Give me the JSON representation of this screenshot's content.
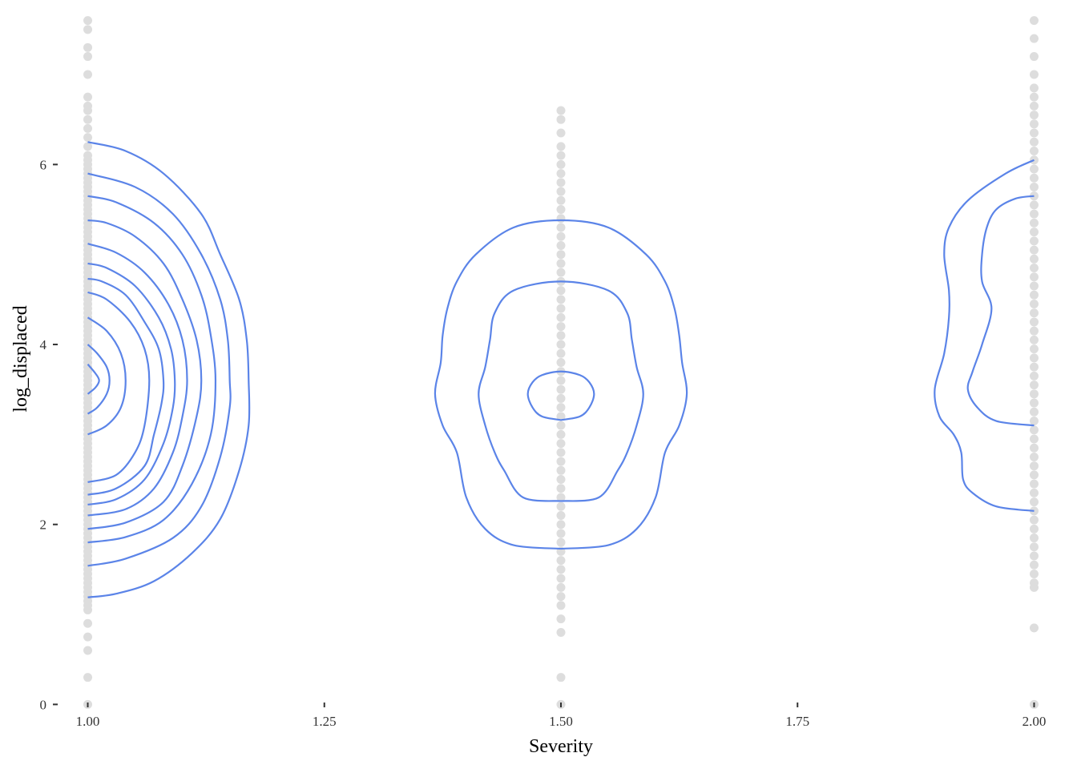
{
  "chart_data": {
    "type": "scatter",
    "title": "",
    "xlabel": "Severity",
    "ylabel": "log_displaced",
    "xlim": [
      0.975,
      2.025
    ],
    "ylim": [
      -0.05,
      7.65
    ],
    "xticks": [
      1.0,
      1.25,
      1.5,
      1.75,
      2.0
    ],
    "xtick_labels": [
      "1.00",
      "1.25",
      "1.50",
      "1.75",
      "2.00"
    ],
    "yticks": [
      0,
      2,
      4,
      6
    ],
    "ytick_labels": [
      "0",
      "2",
      "4",
      "6"
    ],
    "grid": false,
    "legend": "none",
    "colors": {
      "points": "#dddddd",
      "contours": "#5b84e8",
      "ticks": "#333333"
    },
    "points": [
      {
        "x": 1.0,
        "y": [
          0.0,
          0.3,
          0.6,
          0.75,
          0.9,
          1.05,
          1.1,
          1.15,
          1.2,
          1.25,
          1.3,
          1.35,
          1.4,
          1.45,
          1.5,
          1.55,
          1.6,
          1.65,
          1.7,
          1.75,
          1.8,
          1.85,
          1.9,
          1.95,
          2.0,
          2.05,
          2.1,
          2.15,
          2.2,
          2.25,
          2.3,
          2.35,
          2.4,
          2.45,
          2.5,
          2.55,
          2.6,
          2.65,
          2.7,
          2.75,
          2.8,
          2.85,
          2.9,
          2.95,
          3.0,
          3.05,
          3.1,
          3.15,
          3.2,
          3.25,
          3.3,
          3.35,
          3.4,
          3.45,
          3.5,
          3.55,
          3.6,
          3.65,
          3.7,
          3.75,
          3.8,
          3.85,
          3.9,
          3.95,
          4.0,
          4.05,
          4.1,
          4.15,
          4.2,
          4.25,
          4.3,
          4.35,
          4.4,
          4.45,
          4.5,
          4.55,
          4.6,
          4.65,
          4.7,
          4.75,
          4.8,
          4.85,
          4.9,
          4.95,
          5.0,
          5.05,
          5.1,
          5.15,
          5.2,
          5.25,
          5.3,
          5.35,
          5.4,
          5.45,
          5.5,
          5.55,
          5.6,
          5.65,
          5.7,
          5.75,
          5.8,
          5.85,
          5.9,
          5.95,
          6.0,
          6.05,
          6.1,
          6.2,
          6.3,
          6.4,
          6.5,
          6.6,
          6.65,
          6.75,
          7.0,
          7.2,
          7.3,
          7.5,
          7.6
        ]
      },
      {
        "x": 1.5,
        "y": [
          0.0,
          0.3,
          0.8,
          0.95,
          1.1,
          1.2,
          1.3,
          1.4,
          1.5,
          1.6,
          1.7,
          1.8,
          1.9,
          2.0,
          2.1,
          2.2,
          2.3,
          2.4,
          2.5,
          2.6,
          2.7,
          2.8,
          2.9,
          3.0,
          3.1,
          3.2,
          3.3,
          3.4,
          3.5,
          3.6,
          3.7,
          3.8,
          3.9,
          4.0,
          4.1,
          4.2,
          4.3,
          4.4,
          4.5,
          4.6,
          4.7,
          4.8,
          4.9,
          5.0,
          5.1,
          5.2,
          5.3,
          5.4,
          5.5,
          5.6,
          5.7,
          5.8,
          5.9,
          6.0,
          6.1,
          6.2,
          6.35,
          6.5,
          6.6
        ]
      },
      {
        "x": 2.0,
        "y": [
          0.0,
          0.85,
          1.3,
          1.35,
          1.45,
          1.55,
          1.65,
          1.75,
          1.85,
          1.95,
          2.05,
          2.15,
          2.25,
          2.35,
          2.45,
          2.55,
          2.65,
          2.75,
          2.85,
          2.95,
          3.05,
          3.15,
          3.25,
          3.35,
          3.45,
          3.55,
          3.65,
          3.75,
          3.85,
          3.95,
          4.05,
          4.15,
          4.25,
          4.35,
          4.45,
          4.55,
          4.65,
          4.75,
          4.85,
          4.95,
          5.05,
          5.15,
          5.25,
          5.35,
          5.45,
          5.55,
          5.65,
          5.75,
          5.85,
          5.95,
          6.05,
          6.15,
          6.25,
          6.35,
          6.45,
          6.55,
          6.65,
          6.75,
          6.85,
          7.0,
          7.2,
          7.4,
          7.6
        ]
      }
    ],
    "contours": [
      {
        "group": 1.0,
        "points": [
          [
            1.0,
            1.19
          ],
          [
            1.03,
            1.23
          ],
          [
            1.07,
            1.37
          ],
          [
            1.11,
            1.68
          ],
          [
            1.14,
            2.06
          ],
          [
            1.16,
            2.6
          ],
          [
            1.17,
            3.1
          ],
          [
            1.17,
            3.6
          ],
          [
            1.168,
            4.05
          ],
          [
            1.16,
            4.5
          ],
          [
            1.14,
            5.0
          ],
          [
            1.12,
            5.45
          ],
          [
            1.08,
            5.9
          ],
          [
            1.04,
            6.15
          ],
          [
            1.0,
            6.25
          ]
        ]
      },
      {
        "group": 1.0,
        "points": [
          [
            1.0,
            1.54
          ],
          [
            1.04,
            1.62
          ],
          [
            1.09,
            1.85
          ],
          [
            1.12,
            2.2
          ],
          [
            1.14,
            2.75
          ],
          [
            1.15,
            3.3
          ],
          [
            1.15,
            3.6
          ],
          [
            1.148,
            4.05
          ],
          [
            1.14,
            4.5
          ],
          [
            1.12,
            5.0
          ],
          [
            1.09,
            5.45
          ],
          [
            1.05,
            5.75
          ],
          [
            1.0,
            5.9
          ]
        ]
      },
      {
        "group": 1.0,
        "points": [
          [
            1.0,
            1.8
          ],
          [
            1.04,
            1.86
          ],
          [
            1.08,
            2.05
          ],
          [
            1.11,
            2.45
          ],
          [
            1.13,
            3.0
          ],
          [
            1.135,
            3.6
          ],
          [
            1.13,
            4.1
          ],
          [
            1.12,
            4.55
          ],
          [
            1.1,
            5.0
          ],
          [
            1.07,
            5.35
          ],
          [
            1.03,
            5.58
          ],
          [
            1.0,
            5.65
          ]
        ]
      },
      {
        "group": 1.0,
        "points": [
          [
            1.0,
            1.95
          ],
          [
            1.04,
            2.02
          ],
          [
            1.08,
            2.25
          ],
          [
            1.1,
            2.65
          ],
          [
            1.115,
            3.2
          ],
          [
            1.12,
            3.6
          ],
          [
            1.115,
            4.05
          ],
          [
            1.1,
            4.5
          ],
          [
            1.08,
            4.9
          ],
          [
            1.05,
            5.2
          ],
          [
            1.02,
            5.35
          ],
          [
            1.0,
            5.38
          ]
        ]
      },
      {
        "group": 1.0,
        "points": [
          [
            1.0,
            2.1
          ],
          [
            1.04,
            2.17
          ],
          [
            1.07,
            2.4
          ],
          [
            1.09,
            2.8
          ],
          [
            1.1,
            3.2
          ],
          [
            1.105,
            3.6
          ],
          [
            1.1,
            4.05
          ],
          [
            1.085,
            4.45
          ],
          [
            1.06,
            4.8
          ],
          [
            1.03,
            5.02
          ],
          [
            1.0,
            5.12
          ]
        ]
      },
      {
        "group": 1.0,
        "points": [
          [
            1.0,
            2.22
          ],
          [
            1.03,
            2.28
          ],
          [
            1.06,
            2.5
          ],
          [
            1.08,
            2.9
          ],
          [
            1.09,
            3.3
          ],
          [
            1.092,
            3.6
          ],
          [
            1.088,
            3.95
          ],
          [
            1.075,
            4.3
          ],
          [
            1.05,
            4.65
          ],
          [
            1.02,
            4.85
          ],
          [
            1.0,
            4.9
          ]
        ]
      },
      {
        "group": 1.0,
        "points": [
          [
            1.0,
            2.33
          ],
          [
            1.03,
            2.4
          ],
          [
            1.06,
            2.65
          ],
          [
            1.07,
            3.0
          ],
          [
            1.078,
            3.35
          ],
          [
            1.08,
            3.6
          ],
          [
            1.075,
            3.95
          ],
          [
            1.06,
            4.25
          ],
          [
            1.04,
            4.55
          ],
          [
            1.015,
            4.7
          ],
          [
            1.0,
            4.73
          ]
        ]
      },
      {
        "group": 1.0,
        "points": [
          [
            1.0,
            2.47
          ],
          [
            1.03,
            2.55
          ],
          [
            1.05,
            2.8
          ],
          [
            1.06,
            3.1
          ],
          [
            1.065,
            3.6
          ],
          [
            1.06,
            3.95
          ],
          [
            1.045,
            4.25
          ],
          [
            1.02,
            4.5
          ],
          [
            1.0,
            4.58
          ]
        ]
      },
      {
        "group": 1.0,
        "points": [
          [
            1.0,
            3.0
          ],
          [
            1.02,
            3.1
          ],
          [
            1.035,
            3.3
          ],
          [
            1.04,
            3.6
          ],
          [
            1.035,
            3.9
          ],
          [
            1.02,
            4.15
          ],
          [
            1.0,
            4.3
          ]
        ]
      },
      {
        "group": 1.0,
        "points": [
          [
            1.0,
            3.23
          ],
          [
            1.01,
            3.3
          ],
          [
            1.02,
            3.45
          ],
          [
            1.023,
            3.6
          ],
          [
            1.02,
            3.75
          ],
          [
            1.01,
            3.9
          ],
          [
            1.0,
            4.0
          ]
        ]
      },
      {
        "group": 1.0,
        "points": [
          [
            1.0,
            3.45
          ],
          [
            1.008,
            3.52
          ],
          [
            1.012,
            3.6
          ],
          [
            1.008,
            3.68
          ],
          [
            1.0,
            3.78
          ]
        ]
      },
      {
        "group": 1.5,
        "points": [
          [
            1.5,
            1.73
          ],
          [
            1.55,
            1.77
          ],
          [
            1.58,
            1.95
          ],
          [
            1.6,
            2.3
          ],
          [
            1.61,
            2.8
          ],
          [
            1.625,
            3.1
          ],
          [
            1.633,
            3.45
          ],
          [
            1.628,
            3.8
          ],
          [
            1.625,
            4.1
          ],
          [
            1.62,
            4.4
          ],
          [
            1.61,
            4.7
          ],
          [
            1.59,
            5.0
          ],
          [
            1.55,
            5.3
          ],
          [
            1.5,
            5.38
          ],
          [
            1.45,
            5.3
          ],
          [
            1.41,
            5.0
          ],
          [
            1.39,
            4.7
          ],
          [
            1.38,
            4.4
          ],
          [
            1.375,
            4.1
          ],
          [
            1.373,
            3.8
          ],
          [
            1.367,
            3.45
          ],
          [
            1.375,
            3.1
          ],
          [
            1.39,
            2.8
          ],
          [
            1.4,
            2.3
          ],
          [
            1.42,
            1.95
          ],
          [
            1.45,
            1.77
          ],
          [
            1.5,
            1.73
          ]
        ]
      },
      {
        "group": 1.5,
        "points": [
          [
            1.5,
            2.26
          ],
          [
            1.54,
            2.3
          ],
          [
            1.56,
            2.6
          ],
          [
            1.57,
            2.8
          ],
          [
            1.58,
            3.1
          ],
          [
            1.587,
            3.45
          ],
          [
            1.58,
            3.75
          ],
          [
            1.575,
            4.05
          ],
          [
            1.57,
            4.35
          ],
          [
            1.55,
            4.6
          ],
          [
            1.5,
            4.7
          ],
          [
            1.45,
            4.6
          ],
          [
            1.43,
            4.35
          ],
          [
            1.425,
            4.05
          ],
          [
            1.42,
            3.75
          ],
          [
            1.413,
            3.45
          ],
          [
            1.42,
            3.1
          ],
          [
            1.43,
            2.8
          ],
          [
            1.44,
            2.6
          ],
          [
            1.46,
            2.3
          ],
          [
            1.5,
            2.26
          ]
        ]
      },
      {
        "group": 1.5,
        "points": [
          [
            1.5,
            3.16
          ],
          [
            1.52,
            3.2
          ],
          [
            1.53,
            3.3
          ],
          [
            1.535,
            3.45
          ],
          [
            1.53,
            3.58
          ],
          [
            1.52,
            3.66
          ],
          [
            1.5,
            3.7
          ],
          [
            1.48,
            3.66
          ],
          [
            1.47,
            3.58
          ],
          [
            1.465,
            3.45
          ],
          [
            1.47,
            3.3
          ],
          [
            1.48,
            3.2
          ],
          [
            1.5,
            3.16
          ]
        ]
      },
      {
        "group": 2.0,
        "points": [
          [
            2.0,
            2.15
          ],
          [
            1.96,
            2.2
          ],
          [
            1.935,
            2.35
          ],
          [
            1.925,
            2.5
          ],
          [
            1.923,
            2.8
          ],
          [
            1.915,
            3.0
          ],
          [
            1.9,
            3.2
          ],
          [
            1.895,
            3.5
          ],
          [
            1.905,
            3.9
          ],
          [
            1.91,
            4.3
          ],
          [
            1.91,
            4.6
          ],
          [
            1.905,
            5.0
          ],
          [
            1.91,
            5.3
          ],
          [
            1.93,
            5.6
          ],
          [
            1.97,
            5.9
          ],
          [
            2.0,
            6.05
          ]
        ]
      },
      {
        "group": 2.0,
        "points": [
          [
            2.0,
            3.1
          ],
          [
            1.96,
            3.15
          ],
          [
            1.94,
            3.3
          ],
          [
            1.93,
            3.5
          ],
          [
            1.935,
            3.7
          ],
          [
            1.945,
            4.0
          ],
          [
            1.955,
            4.4
          ],
          [
            1.945,
            4.7
          ],
          [
            1.945,
            5.0
          ],
          [
            1.95,
            5.3
          ],
          [
            1.96,
            5.5
          ],
          [
            1.98,
            5.62
          ],
          [
            2.0,
            5.65
          ]
        ]
      }
    ]
  }
}
